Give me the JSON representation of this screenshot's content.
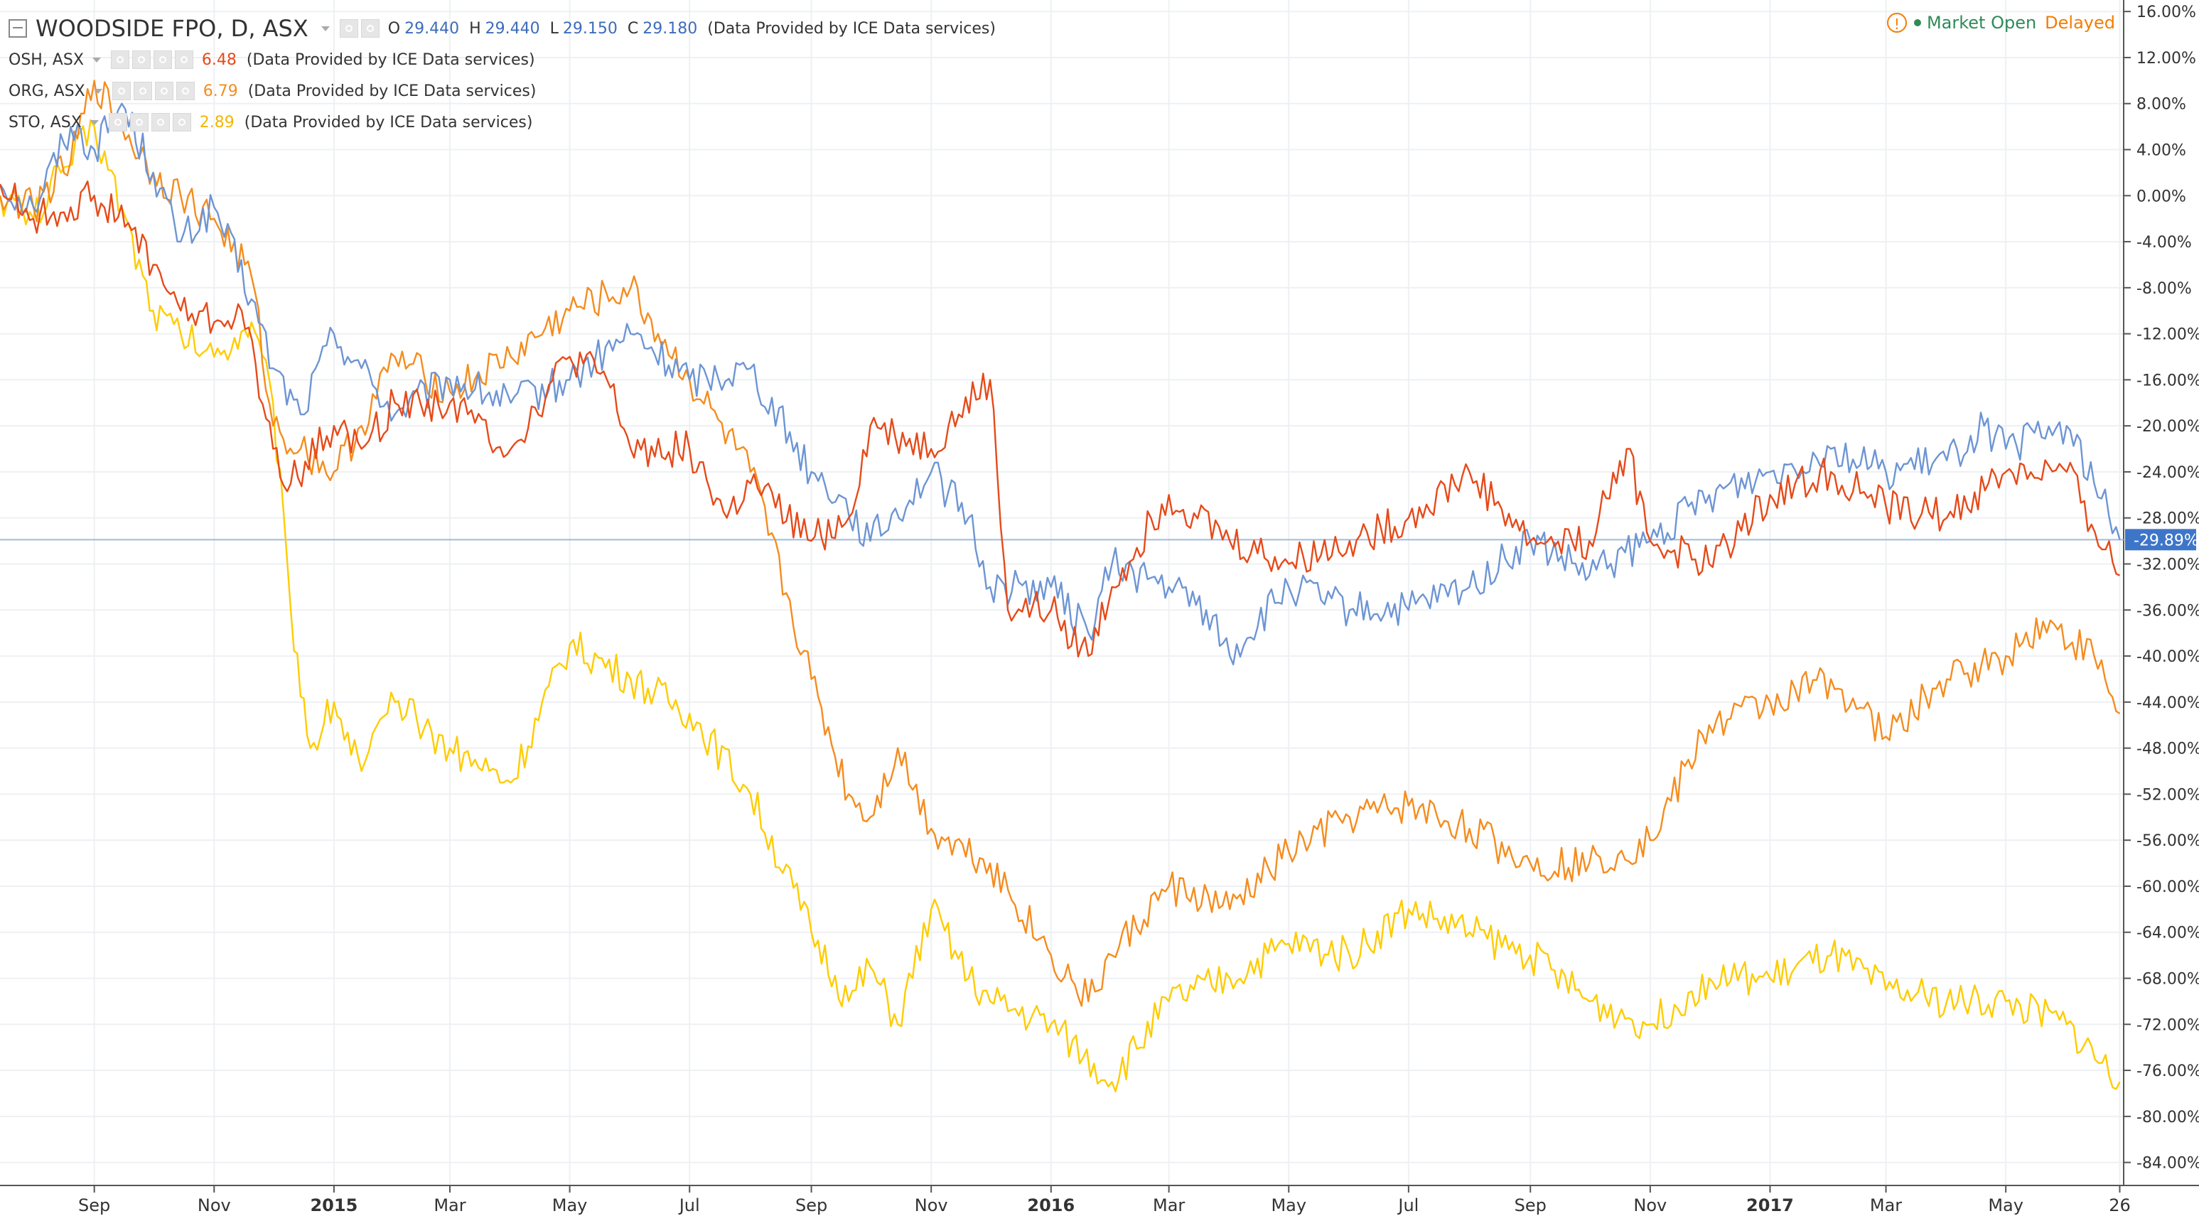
{
  "header": {
    "title": "WOODSIDE FPO, D, ASX",
    "ohlc": [
      {
        "label": "O",
        "value": "29.440"
      },
      {
        "label": "H",
        "value": "29.440"
      },
      {
        "label": "L",
        "value": "29.150"
      },
      {
        "label": "C",
        "value": "29.180"
      }
    ],
    "provider": "(Data Provided by ICE Data services)"
  },
  "status": {
    "market_open": "Market Open",
    "delayed": "Delayed",
    "warning_symbol": "!"
  },
  "price_label": "-29.89%",
  "chart_data": {
    "type": "line",
    "yaxis": {
      "ticks": [
        "16.00%",
        "12.00%",
        "8.00%",
        "4.00%",
        "0.00%",
        "-4.00%",
        "-8.00%",
        "-12.00%",
        "-16.00%",
        "-20.00%",
        "-24.00%",
        "-28.00%",
        "-32.00%",
        "-36.00%",
        "-40.00%",
        "-44.00%",
        "-48.00%",
        "-52.00%",
        "-56.00%",
        "-60.00%",
        "-64.00%",
        "-68.00%",
        "-72.00%",
        "-76.00%",
        "-80.00%",
        "-84.00%"
      ],
      "range": [
        -86,
        17
      ],
      "side": "right"
    },
    "xaxis": {
      "range": [
        "2014-07-15",
        "2017-06-30"
      ],
      "ticks": [
        {
          "date": "2014-09-01",
          "label": "Sep",
          "bold": false
        },
        {
          "date": "2014-11-01",
          "label": "Nov",
          "bold": false
        },
        {
          "date": "2015-01-01",
          "label": "2015",
          "bold": true
        },
        {
          "date": "2015-03-01",
          "label": "Mar",
          "bold": false
        },
        {
          "date": "2015-05-01",
          "label": "May",
          "bold": false
        },
        {
          "date": "2015-07-01",
          "label": "Jul",
          "bold": false
        },
        {
          "date": "2015-09-01",
          "label": "Sep",
          "bold": false
        },
        {
          "date": "2015-11-01",
          "label": "Nov",
          "bold": false
        },
        {
          "date": "2016-01-01",
          "label": "2016",
          "bold": true
        },
        {
          "date": "2016-03-01",
          "label": "Mar",
          "bold": false
        },
        {
          "date": "2016-05-01",
          "label": "May",
          "bold": false
        },
        {
          "date": "2016-07-01",
          "label": "Jul",
          "bold": false
        },
        {
          "date": "2016-09-01",
          "label": "Sep",
          "bold": false
        },
        {
          "date": "2016-11-01",
          "label": "Nov",
          "bold": false
        },
        {
          "date": "2017-01-01",
          "label": "2017",
          "bold": true
        },
        {
          "date": "2017-03-01",
          "label": "Mar",
          "bold": false
        },
        {
          "date": "2017-05-01",
          "label": "May",
          "bold": false
        },
        {
          "date": "2017-06-28",
          "label": "26",
          "bold": false
        }
      ]
    },
    "grid": true,
    "legend_position": "top-left",
    "reference_line": -29.89,
    "series": [
      {
        "name": "WOODSIDE FPO, D, ASX",
        "color": "#6d95d4",
        "points": [
          [
            "2014-07-15",
            1
          ],
          [
            "2014-08-01",
            -1
          ],
          [
            "2014-08-20",
            6
          ],
          [
            "2014-09-01",
            4
          ],
          [
            "2014-09-15",
            8
          ],
          [
            "2014-10-01",
            2
          ],
          [
            "2014-10-15",
            -4
          ],
          [
            "2014-11-01",
            -1
          ],
          [
            "2014-11-20",
            -9
          ],
          [
            "2014-12-01",
            -15
          ],
          [
            "2014-12-15",
            -19
          ],
          [
            "2015-01-01",
            -12
          ],
          [
            "2015-01-15",
            -15
          ],
          [
            "2015-02-01",
            -19
          ],
          [
            "2015-03-01",
            -16
          ],
          [
            "2015-04-01",
            -18
          ],
          [
            "2015-05-01",
            -16
          ],
          [
            "2015-06-01",
            -12
          ],
          [
            "2015-07-01",
            -16
          ],
          [
            "2015-08-01",
            -15
          ],
          [
            "2015-09-01",
            -24
          ],
          [
            "2015-09-15",
            -26
          ],
          [
            "2015-10-01",
            -30
          ],
          [
            "2015-11-01",
            -24
          ],
          [
            "2015-11-20",
            -28
          ],
          [
            "2015-12-01",
            -34
          ],
          [
            "2016-01-01",
            -34
          ],
          [
            "2016-01-20",
            -38
          ],
          [
            "2016-02-01",
            -32
          ],
          [
            "2016-03-01",
            -34
          ],
          [
            "2016-03-20",
            -36
          ],
          [
            "2016-04-01",
            -40
          ],
          [
            "2016-05-01",
            -34
          ],
          [
            "2016-06-01",
            -36
          ],
          [
            "2016-07-01",
            -36
          ],
          [
            "2016-08-01",
            -34
          ],
          [
            "2016-09-01",
            -30
          ],
          [
            "2016-10-01",
            -33
          ],
          [
            "2016-11-01",
            -30
          ],
          [
            "2016-12-01",
            -26
          ],
          [
            "2017-01-01",
            -24
          ],
          [
            "2017-02-01",
            -22
          ],
          [
            "2017-03-01",
            -24
          ],
          [
            "2017-04-01",
            -23
          ],
          [
            "2017-04-20",
            -20
          ],
          [
            "2017-05-01",
            -22
          ],
          [
            "2017-06-01",
            -20
          ],
          [
            "2017-06-15",
            -25
          ],
          [
            "2017-06-28",
            -29.89
          ]
        ]
      },
      {
        "name": "OSH, ASX",
        "value": "6.48",
        "color": "#e64a19",
        "points": [
          [
            "2014-07-15",
            1
          ],
          [
            "2014-08-01",
            -2
          ],
          [
            "2014-08-20",
            -1
          ],
          [
            "2014-09-01",
            0
          ],
          [
            "2014-09-20",
            -3
          ],
          [
            "2014-10-01",
            -6
          ],
          [
            "2014-10-15",
            -10
          ],
          [
            "2014-11-01",
            -11
          ],
          [
            "2014-11-15",
            -10
          ],
          [
            "2014-12-01",
            -22
          ],
          [
            "2014-12-10",
            -25
          ],
          [
            "2015-01-01",
            -20
          ],
          [
            "2015-01-15",
            -22
          ],
          [
            "2015-02-01",
            -18
          ],
          [
            "2015-03-01",
            -18
          ],
          [
            "2015-04-01",
            -22
          ],
          [
            "2015-05-01",
            -14
          ],
          [
            "2015-05-20",
            -16
          ],
          [
            "2015-06-01",
            -22
          ],
          [
            "2015-07-01",
            -22
          ],
          [
            "2015-07-20",
            -28
          ],
          [
            "2015-08-01",
            -25
          ],
          [
            "2015-09-01",
            -30
          ],
          [
            "2015-09-20",
            -28
          ],
          [
            "2015-10-01",
            -20
          ],
          [
            "2015-11-01",
            -22
          ],
          [
            "2015-11-15",
            -19
          ],
          [
            "2015-12-01",
            -16
          ],
          [
            "2015-12-10",
            -36
          ],
          [
            "2016-01-01",
            -36
          ],
          [
            "2016-01-20",
            -40
          ],
          [
            "2016-02-01",
            -34
          ],
          [
            "2016-03-01",
            -26
          ],
          [
            "2016-04-01",
            -30
          ],
          [
            "2016-05-01",
            -32
          ],
          [
            "2016-06-01",
            -30
          ],
          [
            "2016-07-01",
            -28
          ],
          [
            "2016-08-01",
            -24
          ],
          [
            "2016-09-01",
            -30
          ],
          [
            "2016-10-01",
            -30
          ],
          [
            "2016-10-20",
            -22
          ],
          [
            "2016-11-01",
            -30
          ],
          [
            "2016-12-01",
            -32
          ],
          [
            "2017-01-01",
            -26
          ],
          [
            "2017-02-01",
            -24
          ],
          [
            "2017-03-01",
            -27
          ],
          [
            "2017-04-01",
            -28
          ],
          [
            "2017-05-01",
            -24
          ],
          [
            "2017-06-01",
            -24
          ],
          [
            "2017-06-28",
            -33
          ]
        ]
      },
      {
        "name": "ORG, ASX",
        "value": "6.79",
        "color": "#f58c1e",
        "points": [
          [
            "2014-07-15",
            0
          ],
          [
            "2014-08-01",
            -1
          ],
          [
            "2014-08-20",
            3
          ],
          [
            "2014-09-01",
            10
          ],
          [
            "2014-09-15",
            6
          ],
          [
            "2014-10-01",
            2
          ],
          [
            "2014-10-15",
            0
          ],
          [
            "2014-11-01",
            -2
          ],
          [
            "2014-11-20",
            -7
          ],
          [
            "2014-12-01",
            -20
          ],
          [
            "2014-12-15",
            -22
          ],
          [
            "2015-01-01",
            -24
          ],
          [
            "2015-01-15",
            -20
          ],
          [
            "2015-02-01",
            -14
          ],
          [
            "2015-03-01",
            -17
          ],
          [
            "2015-04-01",
            -14
          ],
          [
            "2015-05-01",
            -10
          ],
          [
            "2015-06-01",
            -8
          ],
          [
            "2015-06-15",
            -12
          ],
          [
            "2015-07-01",
            -16
          ],
          [
            "2015-08-01",
            -24
          ],
          [
            "2015-09-01",
            -42
          ],
          [
            "2015-09-20",
            -52
          ],
          [
            "2015-10-01",
            -54
          ],
          [
            "2015-10-15",
            -48
          ],
          [
            "2015-11-01",
            -55
          ],
          [
            "2015-12-01",
            -58
          ],
          [
            "2016-01-01",
            -66
          ],
          [
            "2016-01-20",
            -70
          ],
          [
            "2016-02-01",
            -66
          ],
          [
            "2016-03-01",
            -60
          ],
          [
            "2016-04-01",
            -62
          ],
          [
            "2016-05-01",
            -57
          ],
          [
            "2016-06-01",
            -54
          ],
          [
            "2016-07-01",
            -53
          ],
          [
            "2016-08-01",
            -55
          ],
          [
            "2016-09-01",
            -58
          ],
          [
            "2016-10-01",
            -58
          ],
          [
            "2016-11-01",
            -56
          ],
          [
            "2016-12-01",
            -46
          ],
          [
            "2017-01-01",
            -44
          ],
          [
            "2017-02-01",
            -42
          ],
          [
            "2017-03-01",
            -47
          ],
          [
            "2017-04-01",
            -42
          ],
          [
            "2017-05-01",
            -40
          ],
          [
            "2017-05-20",
            -37
          ],
          [
            "2017-06-15",
            -40
          ],
          [
            "2017-06-28",
            -45
          ]
        ]
      },
      {
        "name": "STO, ASX",
        "value": "2.89",
        "color": "#ffcc00",
        "points": [
          [
            "2014-07-15",
            0
          ],
          [
            "2014-08-01",
            -2
          ],
          [
            "2014-08-15",
            2
          ],
          [
            "2014-09-01",
            6
          ],
          [
            "2014-09-15",
            -1
          ],
          [
            "2014-10-01",
            -10
          ],
          [
            "2014-10-15",
            -12
          ],
          [
            "2014-11-01",
            -14
          ],
          [
            "2014-11-20",
            -11
          ],
          [
            "2014-12-01",
            -18
          ],
          [
            "2014-12-10",
            -36
          ],
          [
            "2014-12-20",
            -48
          ],
          [
            "2015-01-01",
            -44
          ],
          [
            "2015-01-15",
            -50
          ],
          [
            "2015-02-01",
            -44
          ],
          [
            "2015-03-01",
            -48
          ],
          [
            "2015-04-01",
            -51
          ],
          [
            "2015-05-01",
            -39
          ],
          [
            "2015-06-01",
            -42
          ],
          [
            "2015-07-01",
            -45
          ],
          [
            "2015-08-01",
            -52
          ],
          [
            "2015-09-01",
            -64
          ],
          [
            "2015-09-20",
            -70
          ],
          [
            "2015-10-01",
            -67
          ],
          [
            "2015-10-15",
            -72
          ],
          [
            "2015-11-01",
            -62
          ],
          [
            "2015-11-20",
            -68
          ],
          [
            "2015-12-01",
            -70
          ],
          [
            "2016-01-01",
            -72
          ],
          [
            "2016-02-01",
            -77
          ],
          [
            "2016-03-01",
            -70
          ],
          [
            "2016-04-01",
            -68
          ],
          [
            "2016-05-01",
            -65
          ],
          [
            "2016-06-01",
            -66
          ],
          [
            "2016-07-01",
            -62
          ],
          [
            "2016-08-01",
            -64
          ],
          [
            "2016-09-01",
            -66
          ],
          [
            "2016-10-01",
            -70
          ],
          [
            "2016-11-01",
            -72
          ],
          [
            "2016-12-01",
            -68
          ],
          [
            "2017-01-01",
            -68
          ],
          [
            "2017-02-01",
            -66
          ],
          [
            "2017-03-01",
            -69
          ],
          [
            "2017-04-01",
            -70
          ],
          [
            "2017-05-01",
            -70
          ],
          [
            "2017-06-01",
            -72
          ],
          [
            "2017-06-28",
            -77
          ]
        ]
      }
    ]
  }
}
